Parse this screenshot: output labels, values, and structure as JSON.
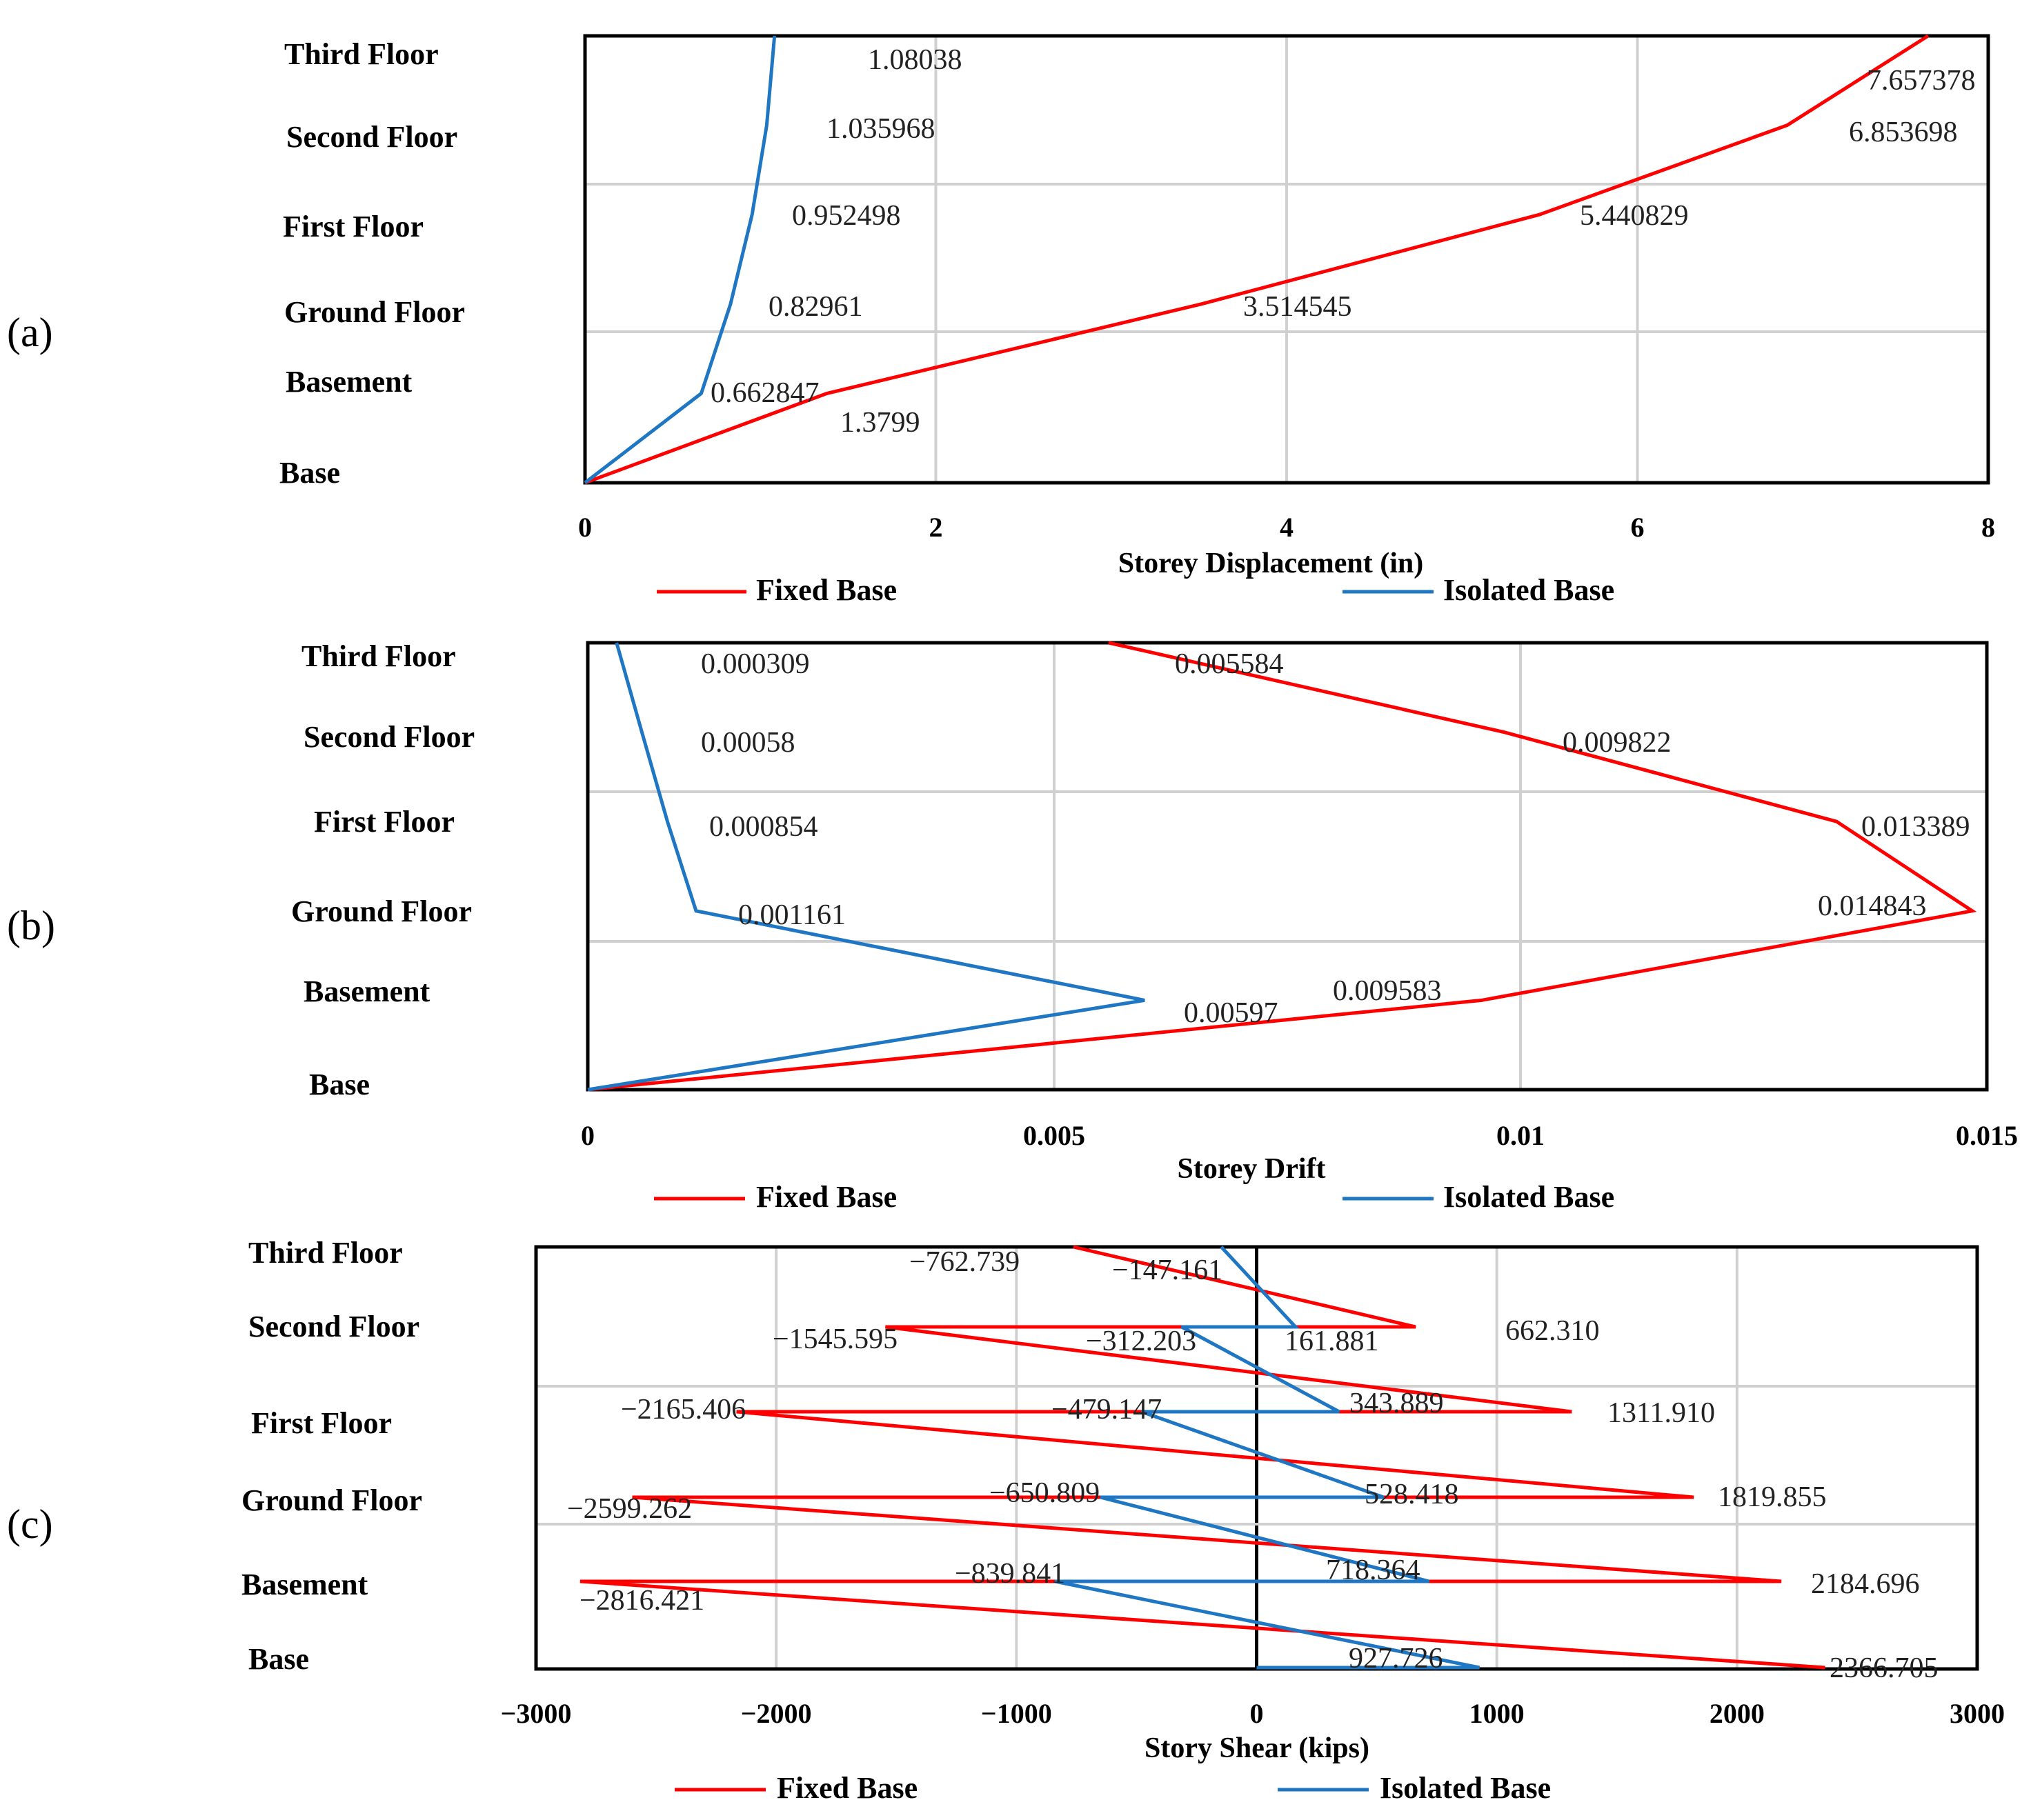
{
  "chart_data": [
    {
      "panel_label": "(a)",
      "type": "line",
      "orientation": "horizontal-value",
      "categories": [
        "Base",
        "Basement",
        "Ground Floor",
        "First Floor",
        "Second Floor",
        "Third Floor"
      ],
      "xlabel": "Storey Displacement (in)",
      "ylabel": "",
      "xlim": [
        0,
        8
      ],
      "xticks": [
        0,
        2,
        4,
        6,
        8
      ],
      "xtick_labels": [
        "0",
        "2",
        "4",
        "6",
        "8"
      ],
      "grid": true,
      "legend_position": "bottom",
      "series": [
        {
          "name": "Fixed Base",
          "color": "#ff0000",
          "values": [
            0,
            1.3799,
            3.514545,
            5.440829,
            6.853698,
            7.657378
          ],
          "labels": [
            "",
            "1.3799",
            "3.514545",
            "5.440829",
            "6.853698",
            "7.657378"
          ]
        },
        {
          "name": "Isolated Base",
          "color": "#1f77c4",
          "values": [
            0,
            0.662847,
            0.82961,
            0.952498,
            1.035968,
            1.08038
          ],
          "labels": [
            "",
            "0.662847",
            "0.82961",
            "0.952498",
            "1.035968",
            "1.08038"
          ]
        }
      ]
    },
    {
      "panel_label": "(b)",
      "type": "line",
      "orientation": "horizontal-value",
      "categories": [
        "Base",
        "Basement",
        "Ground Floor",
        "First Floor",
        "Second Floor",
        "Third Floor"
      ],
      "xlabel": "Storey Drift",
      "ylabel": "",
      "xlim": [
        0,
        0.015
      ],
      "xticks": [
        0,
        0.005,
        0.01,
        0.015
      ],
      "xtick_labels": [
        "0",
        "0.005",
        "0.01",
        "0.015"
      ],
      "grid": true,
      "legend_position": "bottom",
      "series": [
        {
          "name": "Fixed Base",
          "color": "#ff0000",
          "values": [
            0,
            0.009583,
            0.014843,
            0.013389,
            0.009822,
            0.005584
          ],
          "labels": [
            "",
            "0.009583",
            "0.014843",
            "0.013389",
            "0.009822",
            "0.005584"
          ]
        },
        {
          "name": "Isolated Base",
          "color": "#1f77c4",
          "values": [
            0,
            0.00597,
            0.001161,
            0.000854,
            0.00058,
            0.000309
          ],
          "labels": [
            "",
            "0.00597",
            "0.001161",
            "0.000854",
            "0.00058",
            "0.000309"
          ]
        }
      ]
    },
    {
      "panel_label": "(c)",
      "type": "line",
      "orientation": "horizontal-value",
      "categories": [
        "Base",
        "Basement",
        "Ground Floor",
        "First Floor",
        "Second Floor",
        "Third Floor"
      ],
      "xlabel": "Story Shear (kips)",
      "ylabel": "",
      "xlim": [
        -3000,
        3000
      ],
      "xticks": [
        -3000,
        -2000,
        -1000,
        0,
        1000,
        2000,
        3000
      ],
      "xtick_labels": [
        "−3000",
        "−2000",
        "−1000",
        "0",
        "1000",
        "2000",
        "3000"
      ],
      "grid": true,
      "legend_position": "bottom",
      "series": [
        {
          "name": "Fixed Base",
          "color": "#ff0000",
          "points": [
            {
              "x": 2366.705,
              "cat": "Base",
              "label": "2366.705"
            },
            {
              "x": -2816.421,
              "cat": "Basement",
              "label": "−2816.421"
            },
            {
              "x": 2184.696,
              "cat": "Basement",
              "label": "2184.696"
            },
            {
              "x": -2599.262,
              "cat": "Ground Floor",
              "label": "−2599.262"
            },
            {
              "x": 1819.855,
              "cat": "Ground Floor",
              "label": "1819.855"
            },
            {
              "x": -2165.406,
              "cat": "First Floor",
              "label": "−2165.406"
            },
            {
              "x": 1311.91,
              "cat": "First Floor",
              "label": "1311.910"
            },
            {
              "x": -1545.595,
              "cat": "Second Floor",
              "label": "−1545.595"
            },
            {
              "x": 662.31,
              "cat": "Second Floor",
              "label": "662.310"
            },
            {
              "x": -762.739,
              "cat": "Third Floor",
              "label": "−762.739"
            }
          ]
        },
        {
          "name": "Isolated Base",
          "color": "#1f77c4",
          "points": [
            {
              "x": 0,
              "cat": "Base",
              "label": ""
            },
            {
              "x": 927.726,
              "cat": "Base",
              "label": "927.726"
            },
            {
              "x": -839.841,
              "cat": "Basement",
              "label": "−839.841"
            },
            {
              "x": 718.364,
              "cat": "Basement",
              "label": "718.364"
            },
            {
              "x": -650.809,
              "cat": "Ground Floor",
              "label": "−650.809"
            },
            {
              "x": 528.418,
              "cat": "Ground Floor",
              "label": "528.418"
            },
            {
              "x": -479.147,
              "cat": "First Floor",
              "label": "−479.147"
            },
            {
              "x": 343.889,
              "cat": "First Floor",
              "label": "343.889"
            },
            {
              "x": -312.203,
              "cat": "Second Floor",
              "label": "−312.203"
            },
            {
              "x": 161.881,
              "cat": "Second Floor",
              "label": "161.881"
            },
            {
              "x": -147.161,
              "cat": "Third Floor",
              "label": "−147.161"
            }
          ]
        }
      ]
    }
  ]
}
